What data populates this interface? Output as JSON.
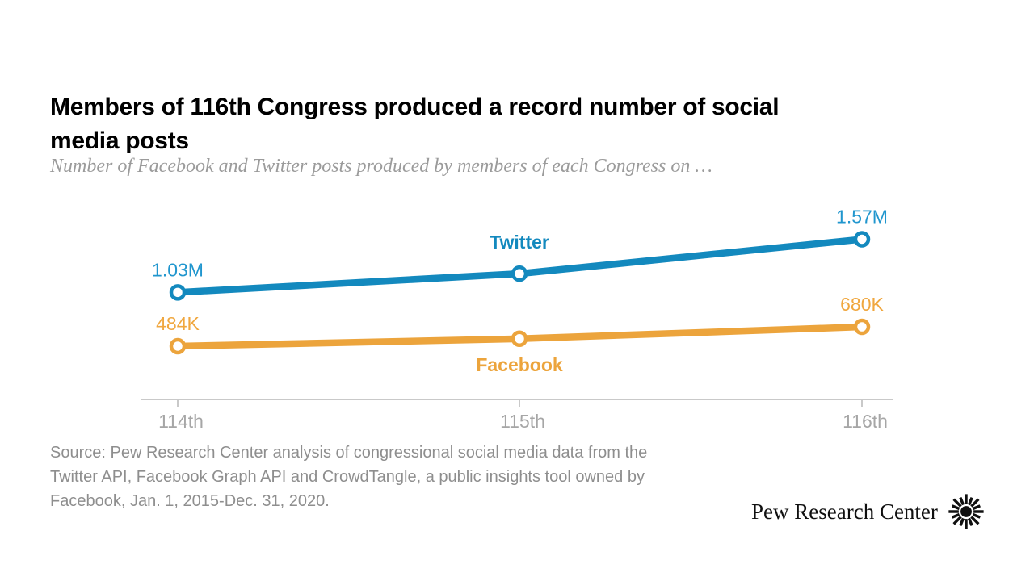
{
  "header": {
    "title_lines": [
      "Members of 116th Congress produced a record number of social",
      "media posts"
    ],
    "subtitle": "Number of Facebook and Twitter posts produced by members of each Congress on …"
  },
  "chart_data": {
    "type": "line",
    "title": "Members of 116th Congress produced a record number of social media posts",
    "subtitle": "Number of Facebook and Twitter posts produced by members of each Congress on …",
    "categories": [
      "114th",
      "115th",
      "116th"
    ],
    "series": [
      {
        "name": "Twitter",
        "line_color": "#1389BE",
        "label_color": "#2096CE",
        "values": [
          1030000,
          1220000,
          1570000
        ],
        "point_labels": [
          "1.03M",
          "",
          "1.57M"
        ],
        "name_label_position": "above-middle"
      },
      {
        "name": "Facebook",
        "line_color": "#ECA43C",
        "label_color": "#F0A73F",
        "values": [
          484000,
          559000,
          680000
        ],
        "point_labels": [
          "484K",
          "",
          "680K"
        ],
        "name_label_position": "below-middle"
      }
    ],
    "xlabel": "",
    "ylabel": "",
    "ylim": [
      0,
      1800000
    ],
    "grid": false,
    "legend": "inline-series-labels",
    "axis_color": "#C9C9C9",
    "tick_label_color": "#A6A6A6"
  },
  "footer": {
    "source_lines": [
      "Source: Pew Research Center analysis of congressional social media data from the",
      "Twitter API, Facebook Graph API and CrowdTangle, a public insights tool owned by",
      "Facebook, Jan. 1, 2015-Dec. 31, 2020."
    ],
    "brand_name": "Pew Research Center"
  }
}
